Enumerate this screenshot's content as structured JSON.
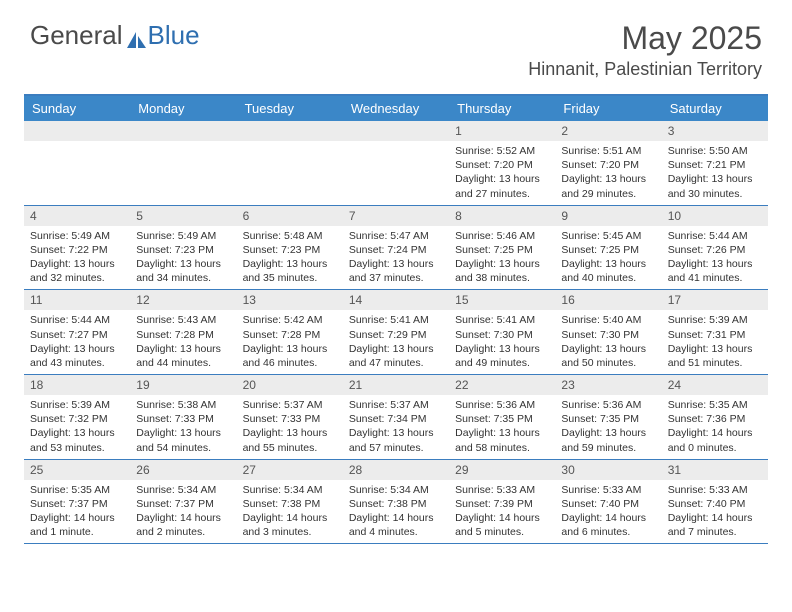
{
  "brand": {
    "part1": "General",
    "part2": "Blue",
    "color1": "#5a5a5a",
    "color2": "#2f6fb0",
    "sail_color": "#2f6fb0"
  },
  "title": "May 2025",
  "location": "Hinnanit, Palestinian Territory",
  "header_bg": "#3b87c8",
  "border_color": "#3b7dbf",
  "daynum_bg": "#ececec",
  "day_names": [
    "Sunday",
    "Monday",
    "Tuesday",
    "Wednesday",
    "Thursday",
    "Friday",
    "Saturday"
  ],
  "weeks": [
    [
      {
        "n": "",
        "l1": "",
        "l2": "",
        "l3": "",
        "l4": ""
      },
      {
        "n": "",
        "l1": "",
        "l2": "",
        "l3": "",
        "l4": ""
      },
      {
        "n": "",
        "l1": "",
        "l2": "",
        "l3": "",
        "l4": ""
      },
      {
        "n": "",
        "l1": "",
        "l2": "",
        "l3": "",
        "l4": ""
      },
      {
        "n": "1",
        "l1": "Sunrise: 5:52 AM",
        "l2": "Sunset: 7:20 PM",
        "l3": "Daylight: 13 hours",
        "l4": "and 27 minutes."
      },
      {
        "n": "2",
        "l1": "Sunrise: 5:51 AM",
        "l2": "Sunset: 7:20 PM",
        "l3": "Daylight: 13 hours",
        "l4": "and 29 minutes."
      },
      {
        "n": "3",
        "l1": "Sunrise: 5:50 AM",
        "l2": "Sunset: 7:21 PM",
        "l3": "Daylight: 13 hours",
        "l4": "and 30 minutes."
      }
    ],
    [
      {
        "n": "4",
        "l1": "Sunrise: 5:49 AM",
        "l2": "Sunset: 7:22 PM",
        "l3": "Daylight: 13 hours",
        "l4": "and 32 minutes."
      },
      {
        "n": "5",
        "l1": "Sunrise: 5:49 AM",
        "l2": "Sunset: 7:23 PM",
        "l3": "Daylight: 13 hours",
        "l4": "and 34 minutes."
      },
      {
        "n": "6",
        "l1": "Sunrise: 5:48 AM",
        "l2": "Sunset: 7:23 PM",
        "l3": "Daylight: 13 hours",
        "l4": "and 35 minutes."
      },
      {
        "n": "7",
        "l1": "Sunrise: 5:47 AM",
        "l2": "Sunset: 7:24 PM",
        "l3": "Daylight: 13 hours",
        "l4": "and 37 minutes."
      },
      {
        "n": "8",
        "l1": "Sunrise: 5:46 AM",
        "l2": "Sunset: 7:25 PM",
        "l3": "Daylight: 13 hours",
        "l4": "and 38 minutes."
      },
      {
        "n": "9",
        "l1": "Sunrise: 5:45 AM",
        "l2": "Sunset: 7:25 PM",
        "l3": "Daylight: 13 hours",
        "l4": "and 40 minutes."
      },
      {
        "n": "10",
        "l1": "Sunrise: 5:44 AM",
        "l2": "Sunset: 7:26 PM",
        "l3": "Daylight: 13 hours",
        "l4": "and 41 minutes."
      }
    ],
    [
      {
        "n": "11",
        "l1": "Sunrise: 5:44 AM",
        "l2": "Sunset: 7:27 PM",
        "l3": "Daylight: 13 hours",
        "l4": "and 43 minutes."
      },
      {
        "n": "12",
        "l1": "Sunrise: 5:43 AM",
        "l2": "Sunset: 7:28 PM",
        "l3": "Daylight: 13 hours",
        "l4": "and 44 minutes."
      },
      {
        "n": "13",
        "l1": "Sunrise: 5:42 AM",
        "l2": "Sunset: 7:28 PM",
        "l3": "Daylight: 13 hours",
        "l4": "and 46 minutes."
      },
      {
        "n": "14",
        "l1": "Sunrise: 5:41 AM",
        "l2": "Sunset: 7:29 PM",
        "l3": "Daylight: 13 hours",
        "l4": "and 47 minutes."
      },
      {
        "n": "15",
        "l1": "Sunrise: 5:41 AM",
        "l2": "Sunset: 7:30 PM",
        "l3": "Daylight: 13 hours",
        "l4": "and 49 minutes."
      },
      {
        "n": "16",
        "l1": "Sunrise: 5:40 AM",
        "l2": "Sunset: 7:30 PM",
        "l3": "Daylight: 13 hours",
        "l4": "and 50 minutes."
      },
      {
        "n": "17",
        "l1": "Sunrise: 5:39 AM",
        "l2": "Sunset: 7:31 PM",
        "l3": "Daylight: 13 hours",
        "l4": "and 51 minutes."
      }
    ],
    [
      {
        "n": "18",
        "l1": "Sunrise: 5:39 AM",
        "l2": "Sunset: 7:32 PM",
        "l3": "Daylight: 13 hours",
        "l4": "and 53 minutes."
      },
      {
        "n": "19",
        "l1": "Sunrise: 5:38 AM",
        "l2": "Sunset: 7:33 PM",
        "l3": "Daylight: 13 hours",
        "l4": "and 54 minutes."
      },
      {
        "n": "20",
        "l1": "Sunrise: 5:37 AM",
        "l2": "Sunset: 7:33 PM",
        "l3": "Daylight: 13 hours",
        "l4": "and 55 minutes."
      },
      {
        "n": "21",
        "l1": "Sunrise: 5:37 AM",
        "l2": "Sunset: 7:34 PM",
        "l3": "Daylight: 13 hours",
        "l4": "and 57 minutes."
      },
      {
        "n": "22",
        "l1": "Sunrise: 5:36 AM",
        "l2": "Sunset: 7:35 PM",
        "l3": "Daylight: 13 hours",
        "l4": "and 58 minutes."
      },
      {
        "n": "23",
        "l1": "Sunrise: 5:36 AM",
        "l2": "Sunset: 7:35 PM",
        "l3": "Daylight: 13 hours",
        "l4": "and 59 minutes."
      },
      {
        "n": "24",
        "l1": "Sunrise: 5:35 AM",
        "l2": "Sunset: 7:36 PM",
        "l3": "Daylight: 14 hours",
        "l4": "and 0 minutes."
      }
    ],
    [
      {
        "n": "25",
        "l1": "Sunrise: 5:35 AM",
        "l2": "Sunset: 7:37 PM",
        "l3": "Daylight: 14 hours",
        "l4": "and 1 minute."
      },
      {
        "n": "26",
        "l1": "Sunrise: 5:34 AM",
        "l2": "Sunset: 7:37 PM",
        "l3": "Daylight: 14 hours",
        "l4": "and 2 minutes."
      },
      {
        "n": "27",
        "l1": "Sunrise: 5:34 AM",
        "l2": "Sunset: 7:38 PM",
        "l3": "Daylight: 14 hours",
        "l4": "and 3 minutes."
      },
      {
        "n": "28",
        "l1": "Sunrise: 5:34 AM",
        "l2": "Sunset: 7:38 PM",
        "l3": "Daylight: 14 hours",
        "l4": "and 4 minutes."
      },
      {
        "n": "29",
        "l1": "Sunrise: 5:33 AM",
        "l2": "Sunset: 7:39 PM",
        "l3": "Daylight: 14 hours",
        "l4": "and 5 minutes."
      },
      {
        "n": "30",
        "l1": "Sunrise: 5:33 AM",
        "l2": "Sunset: 7:40 PM",
        "l3": "Daylight: 14 hours",
        "l4": "and 6 minutes."
      },
      {
        "n": "31",
        "l1": "Sunrise: 5:33 AM",
        "l2": "Sunset: 7:40 PM",
        "l3": "Daylight: 14 hours",
        "l4": "and 7 minutes."
      }
    ]
  ]
}
